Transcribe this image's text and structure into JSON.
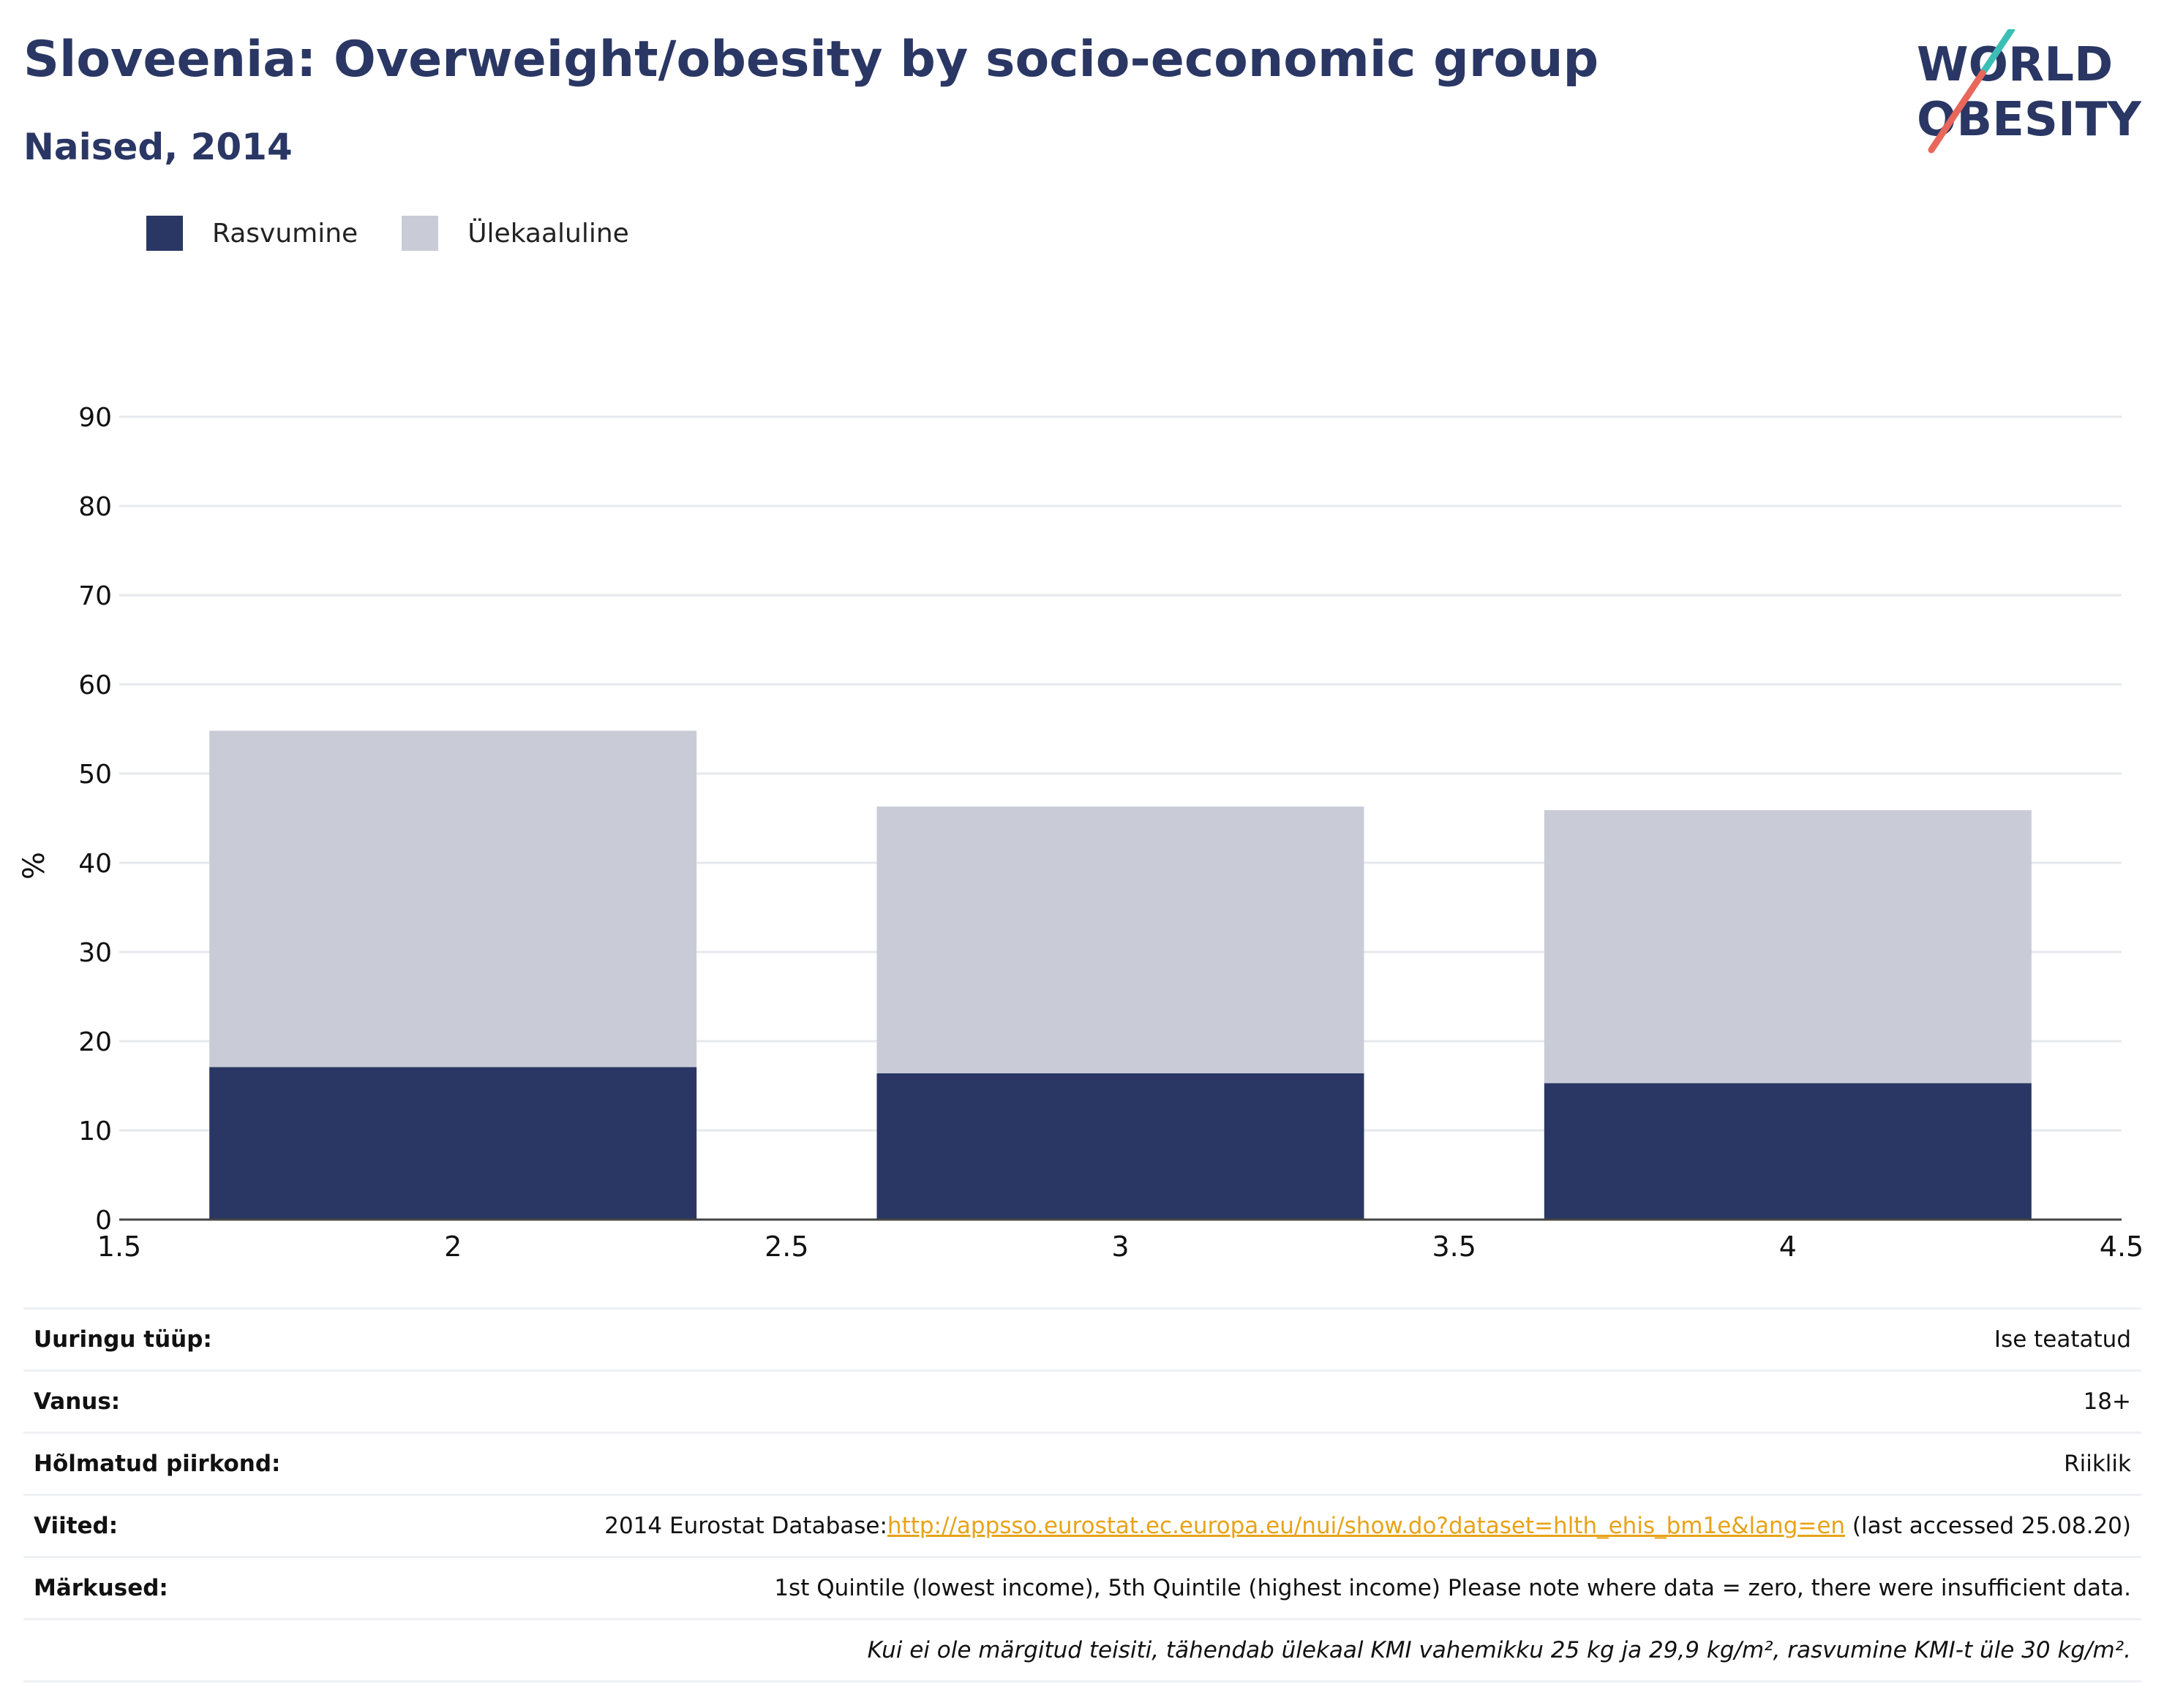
{
  "header": {
    "title": "Sloveenia: Overweight/obesity by socio-economic group",
    "subtitle": "Naised, 2014"
  },
  "logo": {
    "line1": "WORLD",
    "line2": "OBESITY"
  },
  "legend": [
    {
      "label": "Rasvumine",
      "color": "#2a3764"
    },
    {
      "label": "Ülekaaluline",
      "color": "#c9ccd7"
    }
  ],
  "chart_data": {
    "type": "bar",
    "stacked": true,
    "x": [
      2,
      3,
      4
    ],
    "series": [
      {
        "name": "Rasvumine",
        "values": [
          17.1,
          16.4,
          15.3
        ],
        "color": "#2a3764"
      },
      {
        "name": "Ülekaaluline",
        "values": [
          37.7,
          29.9,
          30.6
        ],
        "color": "#c9ccd7"
      }
    ],
    "xlim": [
      1.5,
      4.5
    ],
    "xticks": [
      "1.5",
      "2",
      "2.5",
      "3",
      "3.5",
      "4",
      "4.5"
    ],
    "ylim": [
      0,
      90
    ],
    "yticks": [
      "0",
      "10",
      "20",
      "30",
      "40",
      "50",
      "60",
      "70",
      "80",
      "90"
    ],
    "ylabel": "%",
    "grid": true,
    "legend_position": "top-left"
  },
  "meta": {
    "survey_label": "Uuringu tüüp:",
    "survey_value": "Ise teatatud",
    "age_label": "Vanus:",
    "age_value": "18+",
    "region_label": "Hõlmatud piirkond:",
    "region_value": "Riiklik",
    "refs_label": "Viited:",
    "refs_prefix": "2014 Eurostat Database:",
    "refs_link": "http://appsso.eurostat.ec.europa.eu/nui/show.do?dataset=hlth_ehis_bm1e&lang=en",
    "refs_suffix": " (last accessed 25.08.20)",
    "notes_label": "Märkused:",
    "notes_value": "1st Quintile (lowest income), 5th Quintile (highest income) Please note where data = zero, there were insufficient data.",
    "footnote": "Kui ei ole märgitud teisiti, tähendab ülekaal KMI vahemikku 25 kg ja 29,9 kg/m², rasvumine KMI-t üle 30 kg/m²."
  }
}
